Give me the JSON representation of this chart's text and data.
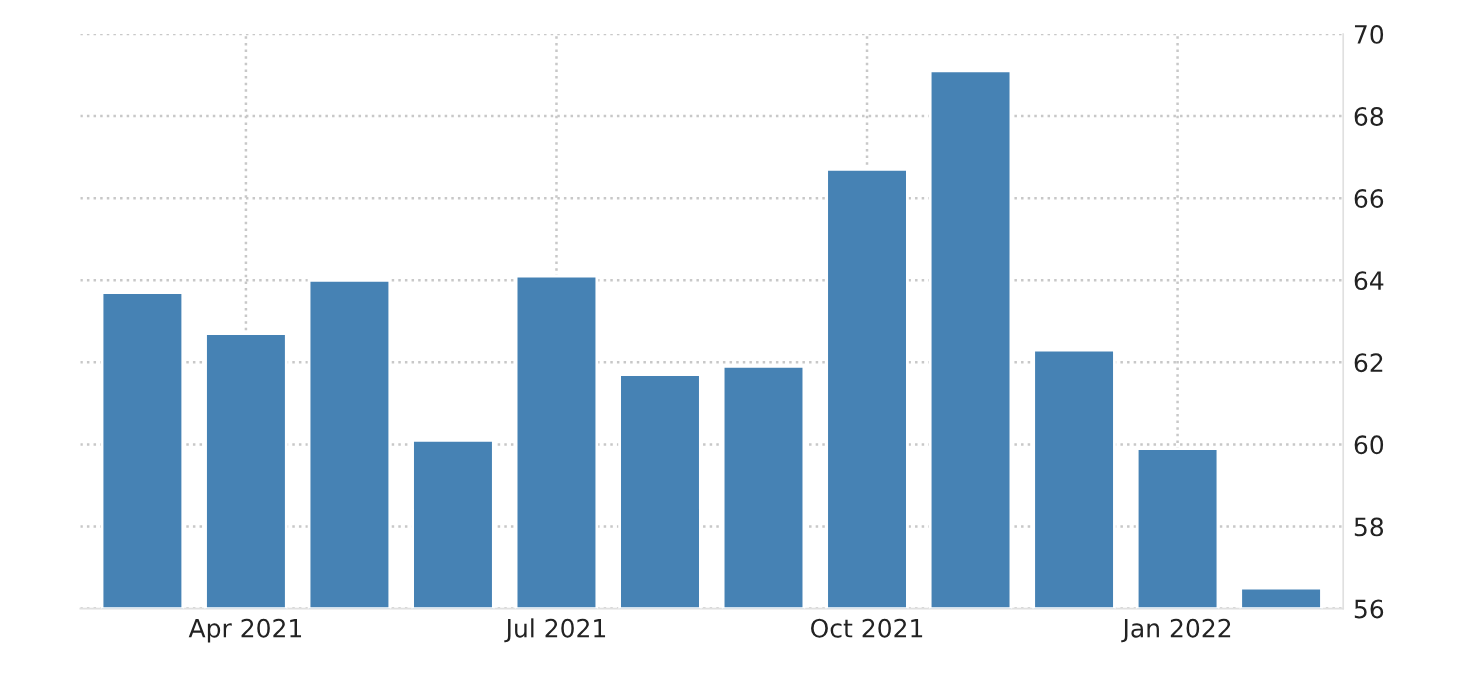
{
  "chart_data": {
    "type": "bar",
    "categories": [
      null,
      "Apr 2021",
      null,
      null,
      "Jul 2021",
      null,
      null,
      "Oct 2021",
      null,
      null,
      "Jan 2022",
      null
    ],
    "values": [
      63.7,
      62.7,
      64.0,
      60.1,
      64.1,
      61.7,
      61.9,
      66.7,
      69.1,
      62.3,
      59.9,
      56.5
    ],
    "color": "#4682b4",
    "ylim": [
      56,
      70
    ],
    "yticks": [
      56,
      58,
      60,
      62,
      64,
      66,
      68,
      70
    ],
    "grid": true,
    "legend": false
  }
}
